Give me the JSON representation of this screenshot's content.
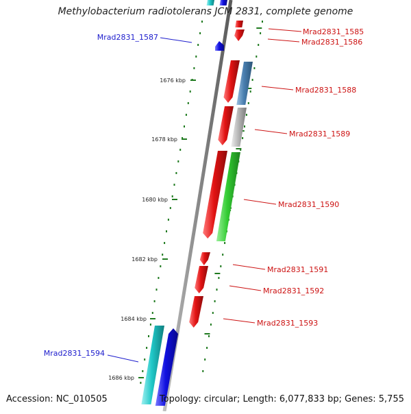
{
  "title": "Methylobacterium radiotolerans JCM 2831, complete genome",
  "accession_label": "Accession: NC_010505",
  "summary_label": "Topology: circular; Length: 6,077,833 bp; Genes: 5,755",
  "colors": {
    "backbone": "#8a8a8a",
    "tick": "#1f7a1f",
    "forward_label": "#1a1acc",
    "reverse_label": "#cc1111",
    "red_gene": "#e21313",
    "blue_gene": "#1010e0",
    "cyan_gene": "#20c8c8",
    "green_gene": "#33cc33",
    "steel_gene": "#4a7fb0",
    "grey_gene": "#b8b8b8"
  },
  "ticks": [
    {
      "label": "1676 kbp",
      "kbp": 1676
    },
    {
      "label": "1678 kbp",
      "kbp": 1678
    },
    {
      "label": "1680 kbp",
      "kbp": 1680
    },
    {
      "label": "1682 kbp",
      "kbp": 1682
    },
    {
      "label": "1684 kbp",
      "kbp": 1684
    },
    {
      "label": "1686 kbp",
      "kbp": 1686
    }
  ],
  "genes": [
    {
      "name": "Mrad2831_1585",
      "strand": "reverse"
    },
    {
      "name": "Mrad2831_1586",
      "strand": "reverse"
    },
    {
      "name": "Mrad2831_1587",
      "strand": "forward"
    },
    {
      "name": "Mrad2831_1588",
      "strand": "reverse"
    },
    {
      "name": "Mrad2831_1589",
      "strand": "reverse"
    },
    {
      "name": "Mrad2831_1590",
      "strand": "reverse"
    },
    {
      "name": "Mrad2831_1591",
      "strand": "reverse"
    },
    {
      "name": "Mrad2831_1592",
      "strand": "reverse"
    },
    {
      "name": "Mrad2831_1593",
      "strand": "reverse"
    },
    {
      "name": "Mrad2831_1594",
      "strand": "forward"
    }
  ]
}
